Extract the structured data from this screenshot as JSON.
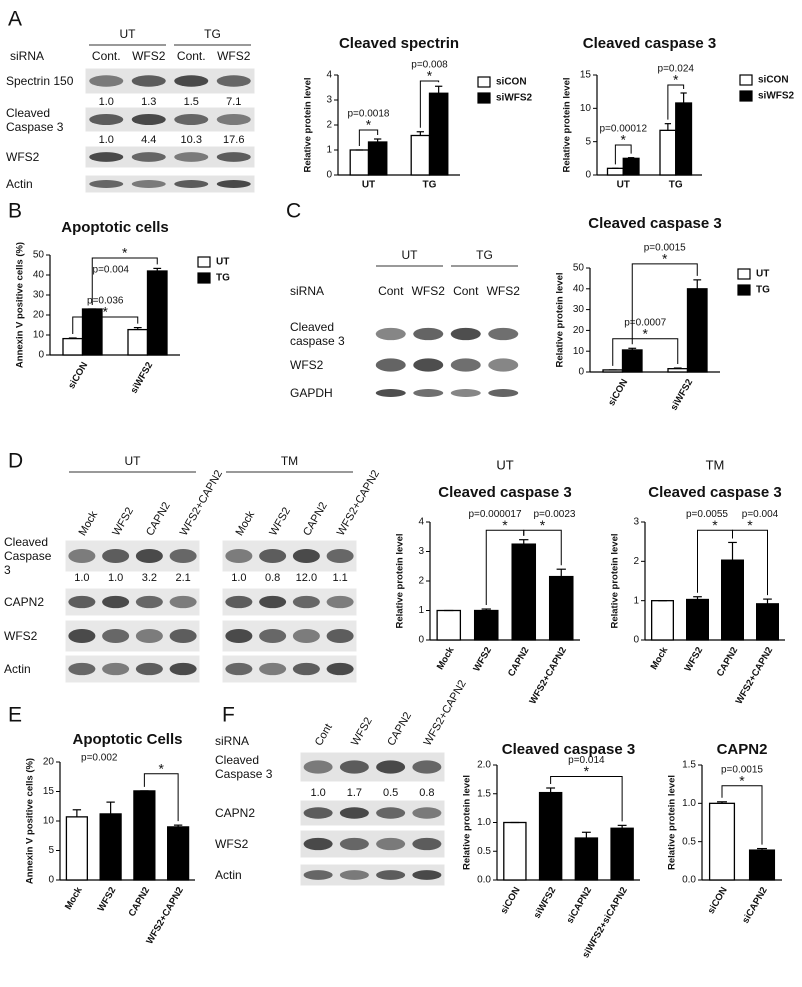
{
  "panel_letters": [
    "A",
    "B",
    "C",
    "D",
    "E",
    "F"
  ],
  "blots": [
    {
      "groups": [
        "UT",
        "TG"
      ],
      "lane_title": "siRNA",
      "lanes": [
        "Cont.",
        "WFS2",
        "Cont.",
        "WFS2"
      ],
      "rows": [
        "Spectrin 150",
        "Cleaved Caspase 3",
        "WFS2",
        "Actin"
      ],
      "quant": [
        [
          "1.0",
          "1.3",
          "1.5",
          "7.1"
        ],
        [
          "1.0",
          "4.4",
          "10.3",
          "17.6"
        ]
      ]
    },
    {
      "groups": [
        "UT",
        "TG"
      ],
      "lane_title": "siRNA",
      "lanes": [
        "Cont",
        "WFS2",
        "Cont",
        "WFS2"
      ],
      "rows": [
        "Cleaved caspase 3",
        "WFS2",
        "GAPDH"
      ]
    },
    {
      "groups": [
        "UT"
      ],
      "lanes": [
        "Mock",
        "WFS2",
        "CAPN2",
        "WFS2+CAPN2"
      ],
      "rows": [
        "Cleaved Caspase 3",
        "CAPN2",
        "WFS2",
        "Actin"
      ],
      "quant": [
        [
          "1.0",
          "1.0",
          "3.2",
          "2.1"
        ]
      ]
    },
    {
      "groups": [
        "TM"
      ],
      "lanes": [
        "Mock",
        "WFS2",
        "CAPN2",
        "WFS2+CAPN2"
      ],
      "quant": [
        [
          "1.0",
          "0.8",
          "12.0",
          "1.1"
        ]
      ]
    },
    {
      "lane_title": "siRNA",
      "lanes": [
        "Cont",
        "WFS2",
        "CAPN2",
        "WFS2+CAPN2"
      ],
      "rows": [
        "Cleaved Caspase 3",
        "CAPN2",
        "WFS2",
        "Actin"
      ],
      "quant": [
        [
          "1.0",
          "1.7",
          "0.5",
          "0.8"
        ]
      ]
    }
  ],
  "chart_data": [
    {
      "type": "bar",
      "title": "Cleaved spectrin",
      "ylabel": "Relative protein level",
      "categories": [
        "UT",
        "TG"
      ],
      "series": [
        {
          "name": "siCON",
          "color": "#ffffff",
          "values": [
            1.0,
            1.58
          ],
          "errors": [
            0.0,
            0.15
          ]
        },
        {
          "name": "siWFS2",
          "color": "#000000",
          "values": [
            1.32,
            3.27
          ],
          "errors": [
            0.12,
            0.28
          ]
        }
      ],
      "ylim": [
        0,
        4
      ],
      "yticks": [
        0,
        1,
        2,
        3,
        4
      ],
      "legend": "right",
      "annotations": [
        {
          "text": "p=0.0018",
          "mark": "*"
        },
        {
          "text": "p=0.008",
          "mark": "*"
        }
      ]
    },
    {
      "type": "bar",
      "title": "Cleaved caspase 3",
      "ylabel": "Relative protein level",
      "categories": [
        "UT",
        "TG"
      ],
      "series": [
        {
          "name": "siCON",
          "color": "#ffffff",
          "values": [
            1.0,
            6.7
          ],
          "errors": [
            0.0,
            1.0
          ]
        },
        {
          "name": "siWFS2",
          "color": "#000000",
          "values": [
            2.5,
            10.8
          ],
          "errors": [
            0.1,
            1.5
          ]
        }
      ],
      "ylim": [
        0,
        15
      ],
      "yticks": [
        0,
        5,
        10,
        15
      ],
      "legend": "right",
      "annotations": [
        {
          "text": "p=0.00012",
          "mark": "*"
        },
        {
          "text": "p=0.024",
          "mark": "*"
        }
      ]
    },
    {
      "type": "bar",
      "title": "Apoptotic cells",
      "ylabel": "Annexin V positive cells (%)",
      "categories": [
        "siCON",
        "siWFS2"
      ],
      "series": [
        {
          "name": "UT",
          "color": "#ffffff",
          "values": [
            8.2,
            12.7
          ],
          "errors": [
            0.3,
            1.0
          ]
        },
        {
          "name": "TG",
          "color": "#000000",
          "values": [
            23,
            42
          ],
          "errors": [
            0.0,
            1.3
          ]
        }
      ],
      "ylim": [
        0,
        50
      ],
      "yticks": [
        0,
        10,
        20,
        30,
        40,
        50
      ],
      "legend": "right",
      "annotations": [
        {
          "text": "p=0.036",
          "mark": "*"
        },
        {
          "text": "p=0.004",
          "mark": "*"
        }
      ]
    },
    {
      "type": "bar",
      "title": "Cleaved caspase 3",
      "ylabel": "Relative protein level",
      "categories": [
        "siCON",
        "siWFS2"
      ],
      "series": [
        {
          "name": "UT",
          "color": "#ffffff",
          "values": [
            1.0,
            1.6
          ],
          "errors": [
            0.0,
            0.3
          ]
        },
        {
          "name": "TG",
          "color": "#000000",
          "values": [
            10.6,
            40
          ],
          "errors": [
            0.8,
            4.3
          ]
        }
      ],
      "ylim": [
        0,
        50
      ],
      "yticks": [
        0,
        10,
        20,
        30,
        40,
        50
      ],
      "legend": "right",
      "annotations": [
        {
          "text": "p=0.0007",
          "mark": "*"
        },
        {
          "text": "p=0.0015",
          "mark": "*"
        }
      ]
    },
    {
      "type": "bar",
      "subtitle": "UT",
      "title": "Cleaved caspase 3",
      "ylabel": "Relative protein level",
      "categories": [
        "Mock",
        "WFS2",
        "CAPN2",
        "WFS2+CAPN2"
      ],
      "values": [
        1.0,
        1.0,
        3.25,
        2.15
      ],
      "errors": [
        0.0,
        0.05,
        0.15,
        0.25
      ],
      "colors": [
        "#ffffff",
        "#000000",
        "#000000",
        "#000000"
      ],
      "ylim": [
        0,
        4
      ],
      "yticks": [
        0,
        1,
        2,
        3,
        4
      ],
      "annotations": [
        {
          "text": "p=0.000017",
          "mark": "*"
        },
        {
          "text": "p=0.0023",
          "mark": "*"
        }
      ]
    },
    {
      "type": "bar",
      "subtitle": "TM",
      "title": "Cleaved caspase 3",
      "ylabel": "Relative protein level",
      "categories": [
        "Mock",
        "WFS2",
        "CAPN2",
        "WFS2+CAPN2"
      ],
      "values": [
        1.0,
        1.03,
        2.03,
        0.92
      ],
      "errors": [
        0.0,
        0.07,
        0.45,
        0.12
      ],
      "colors": [
        "#ffffff",
        "#000000",
        "#000000",
        "#000000"
      ],
      "ylim": [
        0,
        3
      ],
      "yticks": [
        0,
        1,
        2,
        3
      ],
      "annotations": [
        {
          "text": "p=0.0055",
          "mark": "*"
        },
        {
          "text": "p=0.004",
          "mark": "*"
        }
      ]
    },
    {
      "type": "bar",
      "title": "Apoptotic Cells",
      "ylabel": "Annexin V positive cells (%)",
      "categories": [
        "Mock",
        "WFS2",
        "CAPN2",
        "WFS2+CAPN2"
      ],
      "values": [
        10.7,
        11.2,
        15.1,
        9.0
      ],
      "errors": [
        1.2,
        2.0,
        0.0,
        0.3
      ],
      "colors": [
        "#ffffff",
        "#000000",
        "#000000",
        "#000000"
      ],
      "ylim": [
        0,
        20
      ],
      "yticks": [
        0,
        5,
        10,
        15,
        20
      ],
      "annotations": [
        {
          "text": "p=0.002",
          "mark": "*"
        }
      ]
    },
    {
      "type": "bar",
      "title": "Cleaved caspase 3",
      "ylabel": "Relative protein level",
      "categories": [
        "siCON",
        "siWFS2",
        "siCAPN2",
        "siWFS2+siCAPN2"
      ],
      "values": [
        1.0,
        1.52,
        0.73,
        0.9
      ],
      "errors": [
        0.0,
        0.08,
        0.1,
        0.05
      ],
      "colors": [
        "#ffffff",
        "#000000",
        "#000000",
        "#000000"
      ],
      "ylim": [
        0,
        2
      ],
      "yticks": [
        {
          "value": 0,
          "label": "0.0"
        },
        {
          "value": 0.5,
          "label": "0.5"
        },
        {
          "value": 1,
          "label": "1.0"
        },
        {
          "value": 1.5,
          "label": "1.5"
        },
        {
          "value": 2,
          "label": "2.0"
        }
      ],
      "annotations": [
        {
          "text": "p=0.014",
          "mark": "*"
        }
      ]
    },
    {
      "type": "bar",
      "title": "CAPN2",
      "ylabel": "Relative protein level",
      "categories": [
        "siCON",
        "siCAPN2"
      ],
      "values": [
        1.0,
        0.39
      ],
      "errors": [
        0.02,
        0.02
      ],
      "colors": [
        "#ffffff",
        "#000000"
      ],
      "ylim": [
        0,
        1.5
      ],
      "yticks": [
        {
          "value": 0,
          "label": "0.0"
        },
        {
          "value": 0.5,
          "label": "0.5"
        },
        {
          "value": 1,
          "label": "1.0"
        },
        {
          "value": 1.5,
          "label": "1.5"
        }
      ],
      "annotations": [
        {
          "text": "p=0.0015",
          "mark": "*"
        }
      ]
    }
  ]
}
